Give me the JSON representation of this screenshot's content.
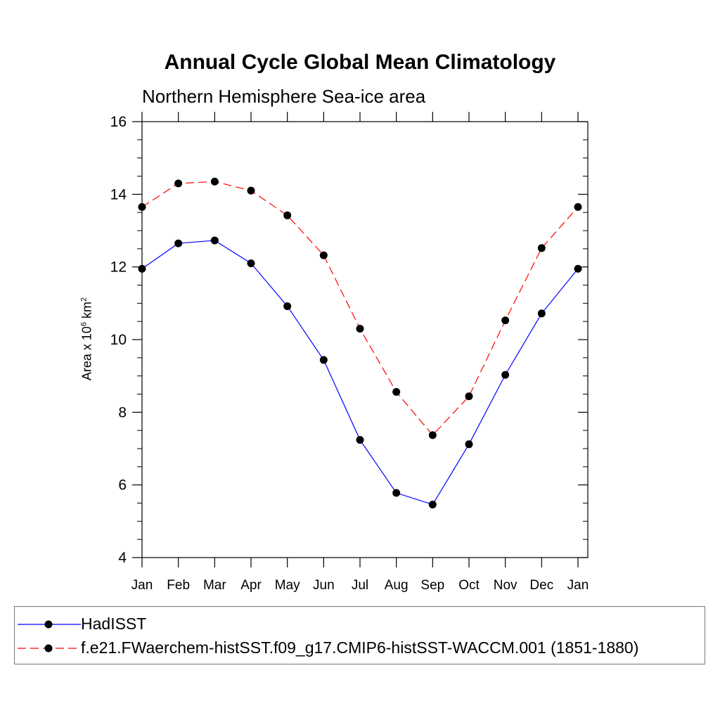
{
  "chart_data": {
    "type": "line",
    "title": "Annual Cycle Global Mean Climatology",
    "subtitle": "Northern Hemisphere Sea-ice area",
    "ylabel_text": "Area x 10",
    "ylabel_exp": "6",
    "ylabel_unit": " km",
    "ylabel_unit_exp": "2",
    "xlabel": "",
    "categories": [
      "Jan",
      "Feb",
      "Mar",
      "Apr",
      "May",
      "Jun",
      "Jul",
      "Aug",
      "Sep",
      "Oct",
      "Nov",
      "Dec",
      "Jan"
    ],
    "ylim": [
      4,
      16
    ],
    "yticks": [
      4,
      6,
      8,
      10,
      12,
      14,
      16
    ],
    "series": [
      {
        "name": "HadISST",
        "color": "#0000ff",
        "dash": "solid",
        "values": [
          11.95,
          12.65,
          12.73,
          12.1,
          10.92,
          9.44,
          7.24,
          5.78,
          5.46,
          7.12,
          9.03,
          10.72,
          11.95
        ]
      },
      {
        "name": "f.e21.FWaerchem-histSST.f09_g17.CMIP6-histSST-WACCM.001 (1851-1880)",
        "color": "#ff0000",
        "dash": "dashed",
        "values": [
          13.65,
          14.3,
          14.35,
          14.1,
          13.42,
          12.32,
          10.3,
          8.56,
          7.37,
          8.44,
          10.53,
          12.52,
          13.65
        ]
      }
    ],
    "grid": false,
    "legend": "bottom"
  }
}
